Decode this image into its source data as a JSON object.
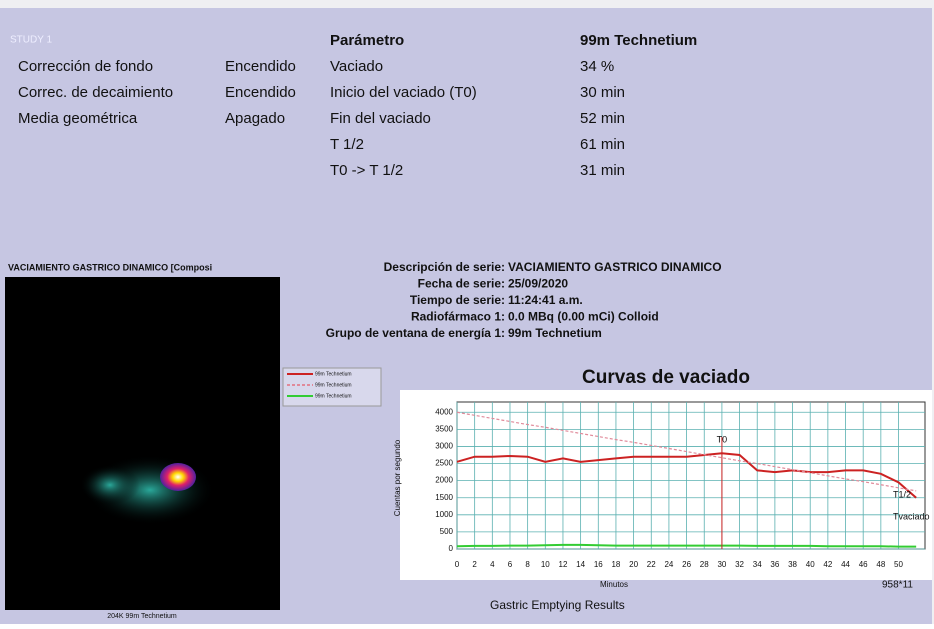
{
  "header": {
    "study": "STUDY 1"
  },
  "settings": {
    "rows": [
      [
        "Corrección de fondo",
        "Encendido"
      ],
      [
        "Correc. de decaimiento",
        "Encendido"
      ],
      [
        "Media geométrica",
        "Apagado"
      ]
    ]
  },
  "parameters": {
    "header": [
      "Parámetro",
      "99m Technetium"
    ],
    "rows": [
      [
        "Vaciado",
        "34 %"
      ],
      [
        "Inicio del vaciado (T0)",
        "30 min"
      ],
      [
        "Fin del vaciado",
        "52 min"
      ],
      [
        "T 1/2",
        "61 min"
      ],
      [
        "T0 -> T 1/2",
        "31 min"
      ]
    ]
  },
  "image_panel": {
    "title": "VACIAMIENTO GASTRICO DINAMICO [Composi",
    "caption": "204K 99m Technetium"
  },
  "series_info": {
    "rows": [
      [
        "Descripción de serie:",
        "VACIAMIENTO GASTRICO DINAMICO"
      ],
      [
        "Fecha de serie:",
        "25/09/2020"
      ],
      [
        "Tiempo de serie:",
        "11:24:41 a.m."
      ],
      [
        "Radiofármaco 1:",
        "0.0 MBq (0.00 mCi) Colloid"
      ],
      [
        "Grupo de ventana de energía 1:",
        "99m Technetium"
      ]
    ]
  },
  "chart_data": {
    "type": "line",
    "title": "Curvas de vaciado",
    "x_label": "Minutos",
    "y_label": "Cuentas por segundo",
    "x": [
      0,
      2,
      4,
      6,
      8,
      10,
      12,
      14,
      16,
      18,
      20,
      22,
      24,
      26,
      28,
      30,
      32,
      34,
      36,
      38,
      40,
      42,
      44,
      46,
      48,
      50,
      52
    ],
    "series": [
      {
        "name": "99m Technetium",
        "color": "#cc2222",
        "dashed": false,
        "values": [
          2550,
          2700,
          2700,
          2720,
          2700,
          2550,
          2650,
          2550,
          2600,
          2650,
          2700,
          2700,
          2700,
          2700,
          2750,
          2800,
          2750,
          2300,
          2250,
          2300,
          2250,
          2250,
          2300,
          2300,
          2200,
          1950,
          1500
        ]
      },
      {
        "name": "99m Technetium",
        "color": "#e08a9a",
        "dashed": true,
        "values": [
          4000,
          3910,
          3820,
          3730,
          3640,
          3560,
          3470,
          3380,
          3290,
          3200,
          3120,
          3030,
          2940,
          2850,
          2760,
          2670,
          2580,
          2500,
          2410,
          2320,
          2230,
          2140,
          2050,
          1970,
          1880,
          1790,
          1700
        ]
      },
      {
        "name": "99m Technetium",
        "color": "#33cc33",
        "dashed": false,
        "values": [
          80,
          90,
          90,
          100,
          100,
          110,
          120,
          120,
          110,
          100,
          100,
          100,
          100,
          100,
          100,
          100,
          100,
          90,
          90,
          90,
          90,
          80,
          80,
          80,
          80,
          70,
          70
        ]
      }
    ],
    "markers": [
      {
        "label": "T0",
        "x": 30
      }
    ],
    "annotations": [
      "T1/2",
      "Tvaciado"
    ],
    "xlim": [
      0,
      53
    ],
    "ylim": [
      0,
      4300
    ],
    "xticks": [
      0,
      2,
      4,
      6,
      8,
      10,
      12,
      14,
      16,
      18,
      20,
      22,
      24,
      26,
      28,
      30,
      32,
      34,
      36,
      38,
      40,
      42,
      44,
      46,
      48,
      50
    ],
    "yticks": [
      0,
      500,
      1000,
      1500,
      2000,
      2500,
      3000,
      3500,
      4000
    ],
    "grid": true
  },
  "footer": {
    "title": "Gastric Emptying Results",
    "code": "958*11"
  }
}
